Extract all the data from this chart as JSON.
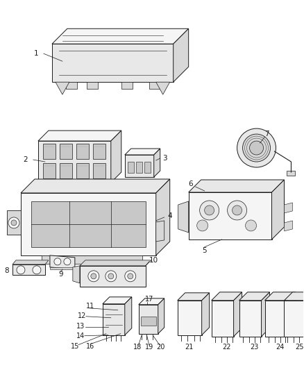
{
  "bg_color": "#ffffff",
  "line_color": "#1a1a1a",
  "label_color": "#1a1a1a",
  "face_light": "#f5f5f5",
  "face_mid": "#e8e8e8",
  "face_dark": "#d8d8d8",
  "face_darker": "#c8c8c8"
}
